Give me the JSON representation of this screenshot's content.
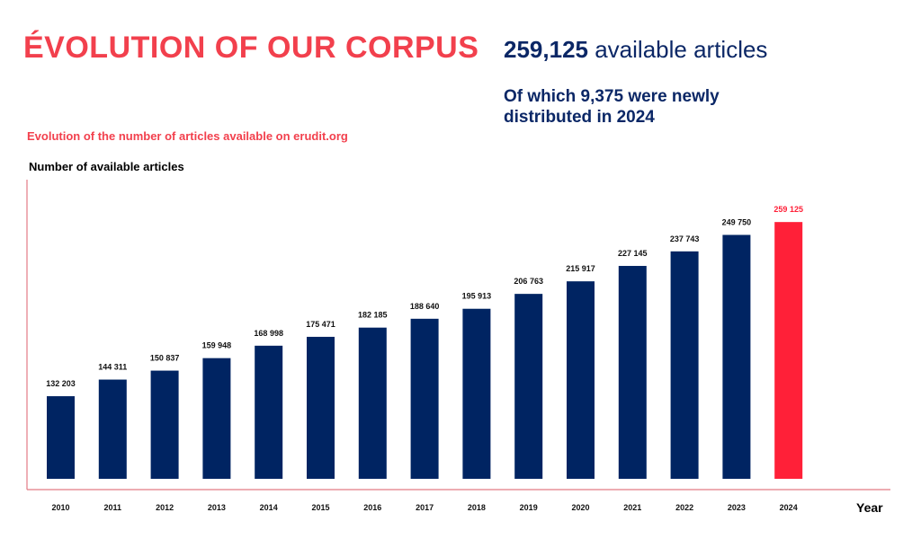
{
  "header": {
    "title": "ÉVOLUTION OF OUR CORPUS",
    "total_value": "259,125",
    "total_label": "available articles",
    "subtitle": "Of which 9,375 were newly distributed in 2024"
  },
  "colors": {
    "accent": "#f2404d",
    "navy": "#002462",
    "highlight": "#ff2038"
  },
  "chart_data": {
    "type": "bar",
    "title": "Evolution of the number of articles available on erudit.org",
    "ylabel": "Number of available articles",
    "xlabel": "Year",
    "categories": [
      "2010",
      "2011",
      "2012",
      "2013",
      "2014",
      "2015",
      "2016",
      "2017",
      "2018",
      "2019",
      "2020",
      "2021",
      "2022",
      "2023",
      "2024"
    ],
    "values": [
      132203,
      144311,
      150837,
      159948,
      168998,
      175471,
      182185,
      188640,
      195913,
      206763,
      215917,
      227145,
      237743,
      249750,
      259125
    ],
    "data_labels": [
      "132 203",
      "144 311",
      "150 837",
      "159 948",
      "168 998",
      "175 471",
      "182 185",
      "188 640",
      "195 913",
      "206 763",
      "215 917",
      "227 145",
      "237 743",
      "249 750",
      "259 125"
    ],
    "highlight_index": 14,
    "ylim": [
      72000,
      290000
    ],
    "grid": false
  }
}
